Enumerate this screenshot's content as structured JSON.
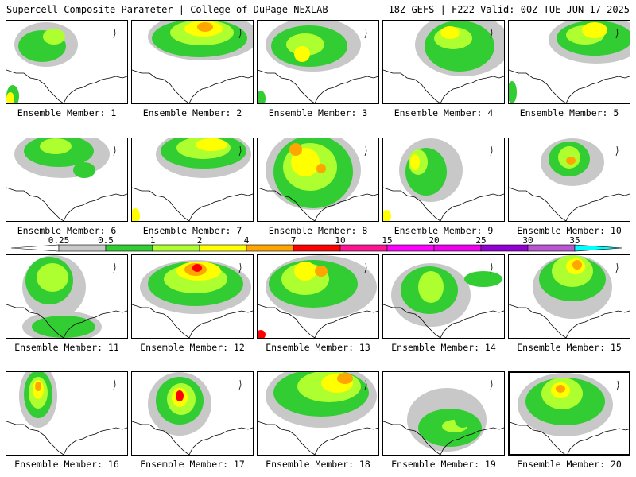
{
  "header": {
    "title": "Supercell Composite Parameter | College of DuPage NEXLAB",
    "run_info": "18Z GEFS | F222 Valid: 00Z TUE JUN 17 2025"
  },
  "legend": {
    "thresholds": [
      "0.25",
      "0.5",
      "1",
      "2",
      "4",
      "7",
      "10",
      "15",
      "20",
      "25",
      "30",
      "35"
    ],
    "colors": [
      "#ffffff",
      "#c8c8c8",
      "#32cd32",
      "#adff2f",
      "#ffff00",
      "#ffa500",
      "#ff0000",
      "#ff1493",
      "#ff00ff",
      "#ee00ee",
      "#9400d3",
      "#ba55d3",
      "#00ffff"
    ]
  },
  "members": [
    {
      "label": "Ensemble Member: 1"
    },
    {
      "label": "Ensemble Member: 2"
    },
    {
      "label": "Ensemble Member: 3"
    },
    {
      "label": "Ensemble Member: 4"
    },
    {
      "label": "Ensemble Member: 5"
    },
    {
      "label": "Ensemble Member: 6"
    },
    {
      "label": "Ensemble Member: 7"
    },
    {
      "label": "Ensemble Member: 8"
    },
    {
      "label": "Ensemble Member: 9"
    },
    {
      "label": "Ensemble Member: 10"
    },
    {
      "label": "Ensemble Member: 11"
    },
    {
      "label": "Ensemble Member: 12"
    },
    {
      "label": "Ensemble Member: 13"
    },
    {
      "label": "Ensemble Member: 14"
    },
    {
      "label": "Ensemble Member: 15"
    },
    {
      "label": "Ensemble Member: 16"
    },
    {
      "label": "Ensemble Member: 17"
    },
    {
      "label": "Ensemble Member: 18"
    },
    {
      "label": "Ensemble Member: 19"
    },
    {
      "label": "Ensemble Member: 20"
    }
  ]
}
